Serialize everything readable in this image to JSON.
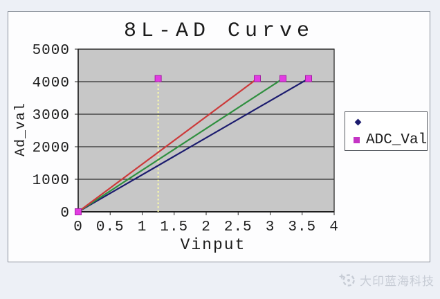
{
  "chart_data": {
    "type": "line",
    "title": "8L-AD Curve",
    "xlabel": "Vinput",
    "ylabel": "Ad_val",
    "xlim": [
      0,
      4
    ],
    "ylim": [
      0,
      5000
    ],
    "x_ticks": [
      0,
      0.5,
      1,
      1.5,
      2,
      2.5,
      3,
      3.5,
      4
    ],
    "x_tick_labels": [
      "0",
      "0.5",
      "1",
      "1.5",
      "2",
      "2.5",
      "3",
      "3.5",
      "4"
    ],
    "y_ticks": [
      0,
      1000,
      2000,
      3000,
      4000,
      5000
    ],
    "y_tick_labels": [
      "0",
      "1000",
      "2000",
      "3000",
      "4000",
      "5000"
    ],
    "grid": true,
    "plot_bg": "#c7c7c7",
    "gridline_color": "#2e2e2e",
    "series": [
      {
        "name": "",
        "color": "#1b1b6e",
        "line": true,
        "marker": "diamond",
        "marker_edge": "#1b1b6e",
        "points": [
          [
            0,
            0
          ],
          [
            3.6,
            4095
          ]
        ]
      },
      {
        "name": "",
        "color": "#2f8f3f",
        "line": true,
        "marker": "none",
        "points": [
          [
            0,
            0
          ],
          [
            3.2,
            4095
          ]
        ]
      },
      {
        "name": "",
        "color": "#cc3a3a",
        "line": true,
        "marker": "none",
        "points": [
          [
            0,
            0
          ],
          [
            2.8,
            4095
          ]
        ]
      },
      {
        "name": "ADC_Val",
        "color": "#e23ce2",
        "line": false,
        "marker": "square",
        "marker_edge": "#a21ea2",
        "points": [
          [
            0,
            0
          ],
          [
            1.25,
            4095
          ],
          [
            2.8,
            4095
          ],
          [
            3.2,
            4095
          ],
          [
            3.6,
            4095
          ]
        ]
      }
    ],
    "guide_line": {
      "x": 1.25,
      "y_from": 0,
      "y_to": 4095,
      "color": "#fbfba8",
      "style": "dotted"
    },
    "legend": {
      "position": "right",
      "entries": [
        {
          "marker": "diamond",
          "color": "#1b1b6e",
          "label": ""
        },
        {
          "marker": "square",
          "color": "#c535c5",
          "label": "ADC_Val"
        }
      ]
    }
  },
  "watermark": {
    "logo_icon": "sparkle-circle-icon",
    "text": "大印蓝海科技"
  }
}
